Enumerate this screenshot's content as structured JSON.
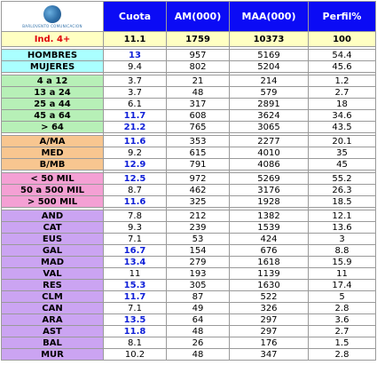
{
  "header": {
    "logo_text": "BARLOVENTO COMUNICACION",
    "columns": [
      "Cuota",
      "AM(000)",
      "MAA(000)",
      "Perfil%"
    ]
  },
  "total": {
    "label": "Ind. 4+",
    "cuota": "11.1",
    "am": "1759",
    "maa": "10373",
    "perfil": "100"
  },
  "groups": [
    {
      "id": "sexo",
      "color": "g-cyan",
      "rows": [
        {
          "label": "HOMBRES",
          "cuota": "13",
          "hi": true,
          "am": "957",
          "maa": "5169",
          "perfil": "54.4"
        },
        {
          "label": "MUJERES",
          "cuota": "9.4",
          "hi": false,
          "am": "802",
          "maa": "5204",
          "perfil": "45.6"
        }
      ]
    },
    {
      "id": "edad",
      "color": "g-green",
      "rows": [
        {
          "label": "4 a 12",
          "cuota": "3.7",
          "hi": false,
          "am": "21",
          "maa": "214",
          "perfil": "1.2"
        },
        {
          "label": "13 a 24",
          "cuota": "3.7",
          "hi": false,
          "am": "48",
          "maa": "579",
          "perfil": "2.7"
        },
        {
          "label": "25 a 44",
          "cuota": "6.1",
          "hi": false,
          "am": "317",
          "maa": "2891",
          "perfil": "18"
        },
        {
          "label": "45 a 64",
          "cuota": "11.7",
          "hi": true,
          "am": "608",
          "maa": "3624",
          "perfil": "34.6"
        },
        {
          "label": "> 64",
          "cuota": "21.2",
          "hi": true,
          "am": "765",
          "maa": "3065",
          "perfil": "43.5"
        }
      ]
    },
    {
      "id": "clase",
      "color": "g-orange",
      "rows": [
        {
          "label": "A/MA",
          "cuota": "11.6",
          "hi": true,
          "am": "353",
          "maa": "2277",
          "perfil": "20.1"
        },
        {
          "label": "MED",
          "cuota": "9.2",
          "hi": false,
          "am": "615",
          "maa": "4010",
          "perfil": "35"
        },
        {
          "label": "B/MB",
          "cuota": "12.9",
          "hi": true,
          "am": "791",
          "maa": "4086",
          "perfil": "45"
        }
      ]
    },
    {
      "id": "habitat",
      "color": "g-pink",
      "rows": [
        {
          "label": "< 50 MIL",
          "cuota": "12.5",
          "hi": true,
          "am": "972",
          "maa": "5269",
          "perfil": "55.2"
        },
        {
          "label": "50 a 500 MIL",
          "cuota": "8.7",
          "hi": false,
          "am": "462",
          "maa": "3176",
          "perfil": "26.3"
        },
        {
          "label": "> 500 MIL",
          "cuota": "11.6",
          "hi": true,
          "am": "325",
          "maa": "1928",
          "perfil": "18.5"
        }
      ]
    },
    {
      "id": "region",
      "color": "g-purple",
      "rows": [
        {
          "label": "AND",
          "cuota": "7.8",
          "hi": false,
          "am": "212",
          "maa": "1382",
          "perfil": "12.1"
        },
        {
          "label": "CAT",
          "cuota": "9.3",
          "hi": false,
          "am": "239",
          "maa": "1539",
          "perfil": "13.6"
        },
        {
          "label": "EUS",
          "cuota": "7.1",
          "hi": false,
          "am": "53",
          "maa": "424",
          "perfil": "3"
        },
        {
          "label": "GAL",
          "cuota": "16.7",
          "hi": true,
          "am": "154",
          "maa": "676",
          "perfil": "8.8"
        },
        {
          "label": "MAD",
          "cuota": "13.4",
          "hi": true,
          "am": "279",
          "maa": "1618",
          "perfil": "15.9"
        },
        {
          "label": "VAL",
          "cuota": "11",
          "hi": false,
          "am": "193",
          "maa": "1139",
          "perfil": "11"
        },
        {
          "label": "RES",
          "cuota": "15.3",
          "hi": true,
          "am": "305",
          "maa": "1630",
          "perfil": "17.4"
        },
        {
          "label": "CLM",
          "cuota": "11.7",
          "hi": true,
          "am": "87",
          "maa": "522",
          "perfil": "5"
        },
        {
          "label": "CAN",
          "cuota": "7.1",
          "hi": false,
          "am": "49",
          "maa": "326",
          "perfil": "2.8"
        },
        {
          "label": "ARA",
          "cuota": "13.5",
          "hi": true,
          "am": "64",
          "maa": "297",
          "perfil": "3.6"
        },
        {
          "label": "AST",
          "cuota": "11.8",
          "hi": true,
          "am": "48",
          "maa": "297",
          "perfil": "2.7"
        },
        {
          "label": "BAL",
          "cuota": "8.1",
          "hi": false,
          "am": "26",
          "maa": "176",
          "perfil": "1.5"
        },
        {
          "label": "MUR",
          "cuota": "10.2",
          "hi": false,
          "am": "48",
          "maa": "347",
          "perfil": "2.8"
        }
      ]
    }
  ]
}
